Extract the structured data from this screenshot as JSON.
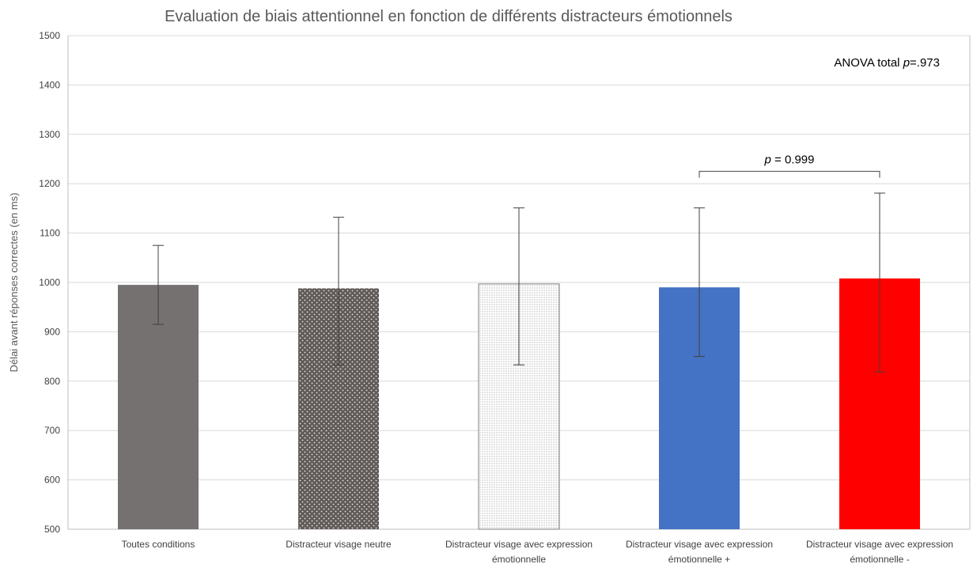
{
  "chart_data": {
    "type": "bar",
    "title": "Evaluation de biais attentionnel en fonction de différents distracteurs émotionnels",
    "xlabel": "",
    "ylabel": "Délai avant réponses correctes (en ms)",
    "ylim": [
      500,
      1500
    ],
    "yticks": [
      500,
      600,
      700,
      800,
      900,
      1000,
      1100,
      1200,
      1300,
      1400,
      1500
    ],
    "grid": true,
    "categories": [
      [
        "Toutes conditions"
      ],
      [
        "Distracteur visage neutre"
      ],
      [
        "Distracteur visage avec expression",
        "émotionnelle"
      ],
      [
        "Distracteur visage avec expression",
        "émotionnelle +"
      ],
      [
        "Distracteur visage avec expression",
        "émotionnelle -"
      ]
    ],
    "values": [
      995,
      988,
      997,
      990,
      1008
    ],
    "error_low": [
      915,
      833,
      833,
      850,
      819
    ],
    "error_high": [
      1075,
      1132,
      1151,
      1151,
      1181
    ],
    "fills": [
      "solid-gray",
      "dark-dots",
      "light-dots",
      "solid-blue",
      "solid-red"
    ],
    "colors": {
      "gray": "#767171",
      "blue": "#4472C4",
      "red": "#FF0000",
      "dots_dark_bg": "#605a58",
      "dots_dark_dot": "#e8e6e4",
      "dots_light_bg": "#ffffff",
      "dots_light_dot": "#9a9a9a",
      "grid": "#d9d9d9",
      "axis": "#bfbfbf"
    },
    "annotations": {
      "anova_prefix": "ANOVA total ",
      "anova_p": "p",
      "anova_value": "=.973",
      "bracket_p": "p",
      "bracket_value": " = 0.999",
      "bracket_value_y": 1225,
      "bracket_from_index": 3,
      "bracket_to_index": 4
    }
  }
}
